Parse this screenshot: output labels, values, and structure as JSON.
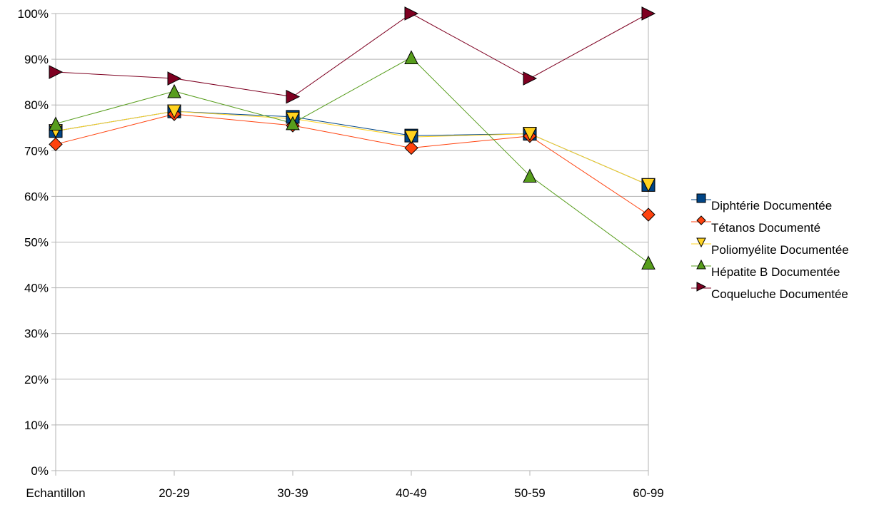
{
  "chart_data": {
    "type": "line",
    "title": "",
    "xlabel": "",
    "ylabel": "",
    "categories": [
      "Echantillon",
      "20-29",
      "30-39",
      "40-49",
      "50-59",
      "60-99"
    ],
    "ylim": [
      0,
      100
    ],
    "yticks": [
      0,
      10,
      20,
      30,
      40,
      50,
      60,
      70,
      80,
      90,
      100
    ],
    "ytick_labels": [
      "0%",
      "10%",
      "20%",
      "30%",
      "40%",
      "50%",
      "60%",
      "70%",
      "80%",
      "90%",
      "100%"
    ],
    "grid": true,
    "legend_position": "right",
    "series": [
      {
        "name": "Diphtérie Documentée",
        "values": [
          74.3,
          78.6,
          77.4,
          73.3,
          73.7,
          62.5
        ],
        "color": "#004586",
        "marker": "square"
      },
      {
        "name": "Tétanos Documenté",
        "values": [
          71.4,
          78.0,
          75.5,
          70.6,
          73.2,
          56.0
        ],
        "color": "#ff420e",
        "marker": "diamond"
      },
      {
        "name": "Poliomyélite Documentée",
        "values": [
          74.3,
          78.6,
          77.0,
          73.0,
          73.7,
          62.5
        ],
        "color": "#ffd320",
        "marker": "triangle-down"
      },
      {
        "name": "Hépatite B Documentée",
        "values": [
          75.9,
          83.0,
          76.0,
          90.4,
          64.5,
          45.5
        ],
        "color": "#579d1c",
        "marker": "triangle-up"
      },
      {
        "name": "Coqueluche Documentée",
        "values": [
          87.2,
          85.8,
          81.8,
          100.0,
          85.8,
          100.0
        ],
        "color": "#7e0021",
        "marker": "triangle-right"
      }
    ]
  }
}
